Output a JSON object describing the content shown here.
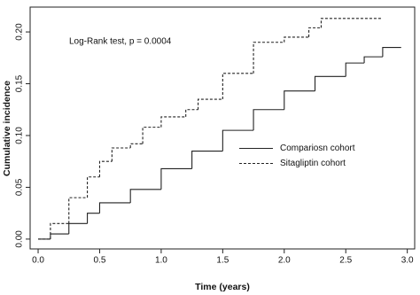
{
  "chart_data": {
    "type": "line",
    "step": true,
    "annotation": "Log-Rank test, p = 0.0004",
    "x_label": "Time (years)",
    "y_label": "Cumulative incidence",
    "xlim": [
      -0.065,
      3.06
    ],
    "ylim": [
      -0.0095,
      0.224
    ],
    "xticks": [
      {
        "value": 0,
        "label": "0.0"
      },
      {
        "value": 0.5,
        "label": "0.5"
      },
      {
        "value": 1,
        "label": "1.0"
      },
      {
        "value": 1.5,
        "label": "1.5"
      },
      {
        "value": 2,
        "label": "2.0"
      },
      {
        "value": 2.5,
        "label": "2.5"
      },
      {
        "value": 3,
        "label": "3.0"
      }
    ],
    "yticks": [
      {
        "value": 0,
        "label": "0.00"
      },
      {
        "value": 0.05,
        "label": "0.05"
      },
      {
        "value": 0.1,
        "label": "0.10"
      },
      {
        "value": 0.15,
        "label": "0.15"
      },
      {
        "value": 0.2,
        "label": "0.20"
      }
    ],
    "legend_position": "center-right",
    "series": [
      {
        "name": "Compariosn cohort",
        "color": "#222222",
        "dash": "solid",
        "x": [
          0,
          0.1,
          0.25,
          0.4,
          0.5,
          0.75,
          1.0,
          1.25,
          1.5,
          1.75,
          2.0,
          2.25,
          2.5,
          2.65,
          2.8,
          2.95
        ],
        "values": [
          0,
          0.005,
          0.015,
          0.025,
          0.035,
          0.048,
          0.068,
          0.085,
          0.105,
          0.125,
          0.143,
          0.157,
          0.17,
          0.176,
          0.185,
          0.185
        ]
      },
      {
        "name": "Sitagliptin cohort",
        "color": "#222222",
        "dash": "dashed",
        "x": [
          0,
          0.1,
          0.25,
          0.4,
          0.5,
          0.6,
          0.75,
          0.85,
          1.0,
          1.2,
          1.3,
          1.5,
          1.75,
          2.0,
          2.2,
          2.3,
          2.8
        ],
        "values": [
          0,
          0.015,
          0.04,
          0.06,
          0.075,
          0.088,
          0.092,
          0.108,
          0.118,
          0.125,
          0.135,
          0.16,
          0.19,
          0.195,
          0.204,
          0.213,
          0.213
        ]
      }
    ]
  }
}
